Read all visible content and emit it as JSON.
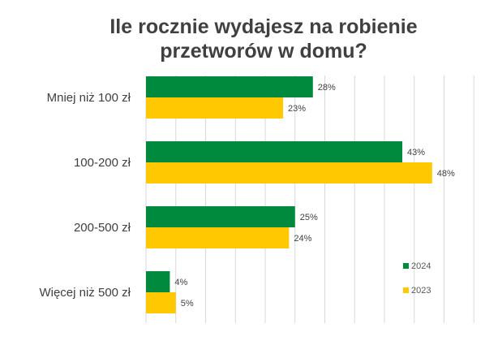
{
  "chart_data": {
    "type": "bar",
    "orientation": "horizontal",
    "title": [
      "Ile rocznie wydajesz na robienie",
      "przetworów w domu?"
    ],
    "xlabel": "",
    "ylabel": "",
    "categories": [
      "Mniej niż 100 zł",
      "100-200 zł",
      "200-500 zł",
      "Więcej niż 500 zł"
    ],
    "series": [
      {
        "name": "2024",
        "color": "#008A3E",
        "values": [
          28,
          43,
          25,
          4
        ],
        "labels": [
          "28%",
          "43%",
          "25%",
          "4%"
        ]
      },
      {
        "name": "2023",
        "color": "#FFC800",
        "values": [
          23,
          48,
          24,
          5
        ],
        "labels": [
          "23%",
          "48%",
          "24%",
          "5%"
        ]
      }
    ],
    "xlim": [
      0,
      55
    ],
    "grid": "vertical",
    "legend": "bottom-right"
  }
}
